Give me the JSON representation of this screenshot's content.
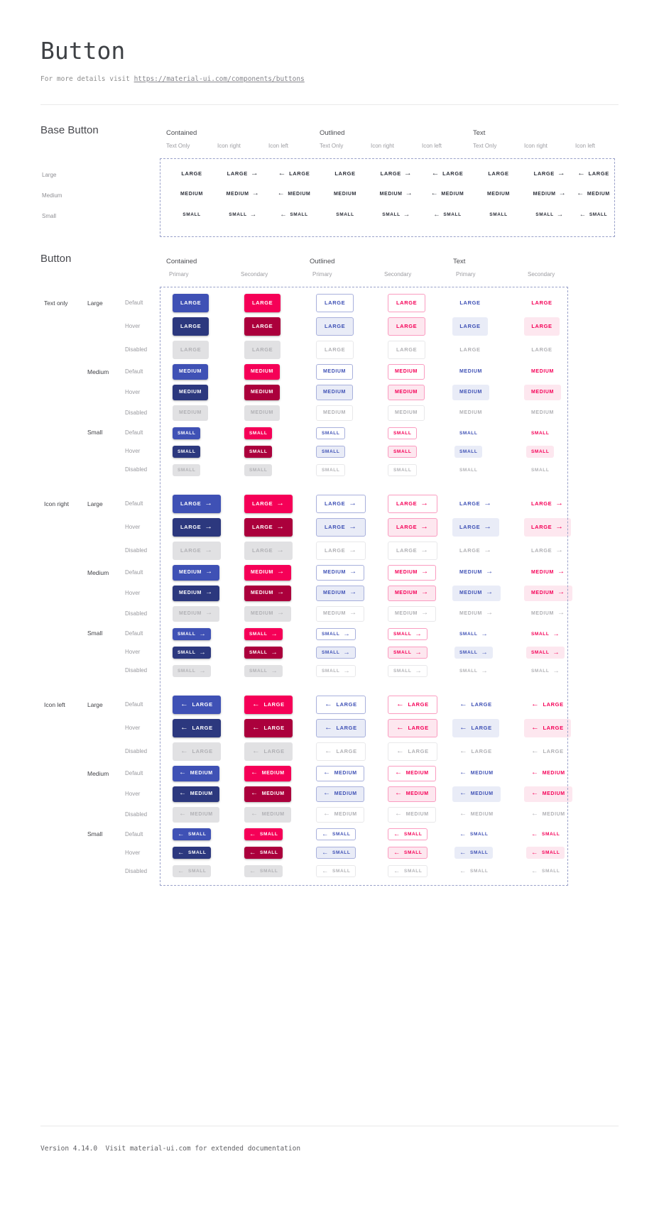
{
  "page": {
    "title": "Button",
    "subtitle_prefix": "For more details visit ",
    "subtitle_link": "https://material-ui.com/components/buttons"
  },
  "icons": {
    "arrow_right": "→",
    "arrow_left": "←"
  },
  "colors": {
    "primary": "#3f51b5",
    "primary_hover": "#2c387e",
    "secondary": "#f50057",
    "secondary_hover": "#ab003c",
    "primary_tint": "#e9ecf7",
    "secondary_tint": "#fde7ef",
    "primary_border": "#a8b0dc",
    "secondary_border": "#fa9cc0",
    "disabled_bg": "#e1e1e3",
    "disabled_text": "#b1b1b5",
    "disabled_border": "#e8e8ea"
  },
  "base_section": {
    "title": "Base Button",
    "groups": [
      "Contained",
      "Outlined",
      "Text"
    ],
    "subcolumns": [
      "Text Only",
      "Icon right",
      "Icon left"
    ],
    "rows": [
      {
        "label": "Large",
        "text": "LARGE"
      },
      {
        "label": "Medium",
        "text": "MEDIUM"
      },
      {
        "label": "Small",
        "text": "SMALL"
      }
    ]
  },
  "button_section": {
    "title": "Button",
    "groups": [
      "Contained",
      "Outlined",
      "Text"
    ],
    "subcolumns": [
      "Primary",
      "Secondary"
    ],
    "icon_groups": [
      {
        "label": "Text only",
        "icon": "none"
      },
      {
        "label": "Icon right",
        "icon": "right"
      },
      {
        "label": "Icon left",
        "icon": "left"
      }
    ],
    "sizes": [
      {
        "label": "Large",
        "text": "LARGE"
      },
      {
        "label": "Medium",
        "text": "MEDIUM"
      },
      {
        "label": "Small",
        "text": "SMALL"
      }
    ],
    "states": [
      "Default",
      "Hover",
      "Disabled"
    ]
  },
  "footer": {
    "text": "Version 4.14.0  Visit material-ui.com for extended documentation"
  }
}
